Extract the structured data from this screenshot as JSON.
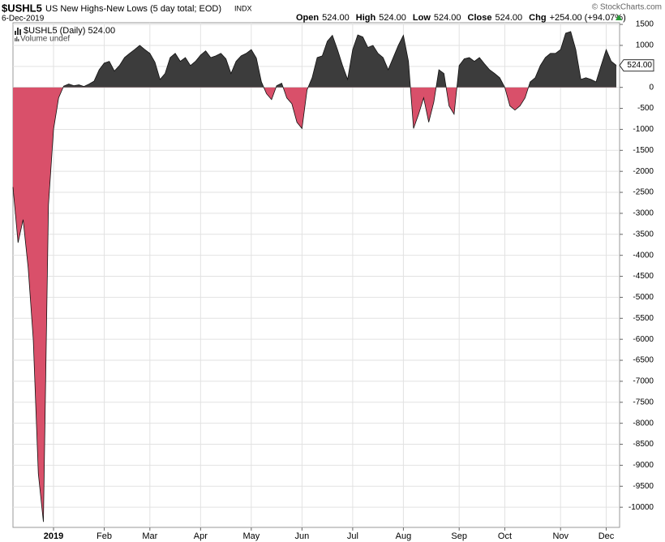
{
  "header": {
    "symbol": "$USHL5",
    "name": "US New Highs-New Lows (5 day total; EOD)",
    "exchange": "INDX",
    "date": "6-Dec-2019",
    "quote": [
      {
        "label": "Open",
        "value": "524.00"
      },
      {
        "label": "High",
        "value": "524.00"
      },
      {
        "label": "Low",
        "value": "524.00"
      },
      {
        "label": "Close",
        "value": "524.00"
      },
      {
        "label": "Chg",
        "value": "+254.00 (+94.07%)"
      }
    ],
    "credit": "© StockCharts.com"
  },
  "chart_data": {
    "type": "area",
    "categories": [
      null,
      null,
      null,
      null,
      null,
      null,
      null,
      null,
      "2019",
      null,
      null,
      null,
      null,
      null,
      null,
      null,
      null,
      null,
      "Feb",
      null,
      null,
      null,
      null,
      null,
      null,
      null,
      null,
      "Mar",
      null,
      null,
      null,
      null,
      null,
      null,
      null,
      null,
      null,
      "Apr",
      null,
      null,
      null,
      null,
      null,
      null,
      null,
      null,
      null,
      "May",
      null,
      null,
      null,
      null,
      null,
      null,
      null,
      null,
      null,
      "Jun",
      null,
      null,
      null,
      null,
      null,
      null,
      null,
      null,
      null,
      "Jul",
      null,
      null,
      null,
      null,
      null,
      null,
      null,
      null,
      null,
      "Aug",
      null,
      null,
      null,
      null,
      null,
      null,
      null,
      null,
      null,
      null,
      "Sep",
      null,
      null,
      null,
      null,
      null,
      null,
      null,
      null,
      "Oct",
      null,
      null,
      null,
      null,
      null,
      null,
      null,
      null,
      null,
      null,
      "Nov",
      null,
      null,
      null,
      null,
      null,
      null,
      null,
      null,
      "Dec",
      null,
      null
    ],
    "series": [
      {
        "name": "$USHL5 (Daily) 524.00",
        "color": "#3c3c3c",
        "negative_color": "#d9506a",
        "values": [
          -2375,
          -3700,
          -3150,
          -4300,
          -6000,
          -9200,
          -10350,
          -2800,
          -1000,
          -250,
          30,
          80,
          40,
          60,
          20,
          80,
          150,
          420,
          580,
          620,
          390,
          520,
          710,
          810,
          900,
          1000,
          900,
          810,
          600,
          190,
          330,
          710,
          810,
          620,
          710,
          520,
          620,
          770,
          870,
          710,
          750,
          810,
          680,
          330,
          620,
          750,
          810,
          900,
          700,
          130,
          -150,
          -290,
          40,
          100,
          -250,
          -390,
          -830,
          -980,
          -60,
          230,
          710,
          750,
          1100,
          1240,
          900,
          520,
          190,
          900,
          1250,
          1200,
          950,
          1000,
          810,
          710,
          420,
          710,
          1000,
          1240,
          620,
          -980,
          -640,
          -250,
          -830,
          -350,
          420,
          330,
          -440,
          -640,
          520,
          680,
          710,
          620,
          710,
          560,
          420,
          330,
          230,
          0,
          -440,
          -540,
          -440,
          -250,
          130,
          230,
          520,
          710,
          810,
          810,
          900,
          1290,
          1330,
          900,
          190,
          230,
          190,
          130,
          520,
          900,
          620,
          524
        ]
      }
    ],
    "volume_note": "Volume undef",
    "ylim": [
      -10480,
      1540
    ],
    "yticks": [
      1500,
      1000,
      500,
      0,
      -500,
      -1000,
      -1500,
      -2000,
      -2500,
      -3000,
      -3500,
      -4000,
      -4500,
      -5000,
      -5500,
      -6000,
      -6500,
      -7000,
      -7500,
      -8000,
      -8500,
      -9000,
      -9500,
      -10000
    ],
    "grid": true
  }
}
